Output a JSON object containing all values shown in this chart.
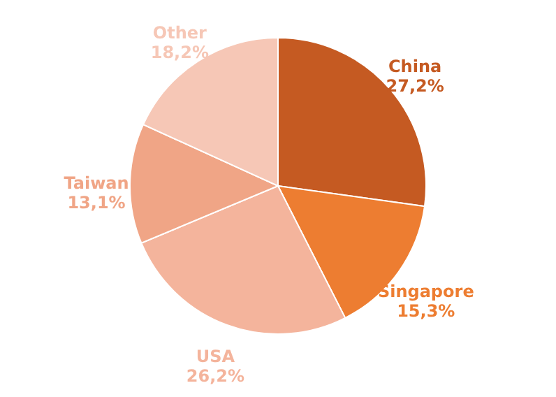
{
  "chart_data": {
    "type": "pie",
    "categories": [
      "China",
      "Singapore",
      "USA",
      "Taiwan",
      "Other"
    ],
    "values": [
      27.2,
      15.3,
      26.2,
      13.1,
      18.2
    ],
    "colors": [
      "#c55a22",
      "#ed7d31",
      "#f4b49c",
      "#f0a586",
      "#f6c7b6"
    ],
    "value_labels": [
      "27,2%",
      "15,3%",
      "26,2%",
      "13,1%",
      "18,2%"
    ]
  }
}
